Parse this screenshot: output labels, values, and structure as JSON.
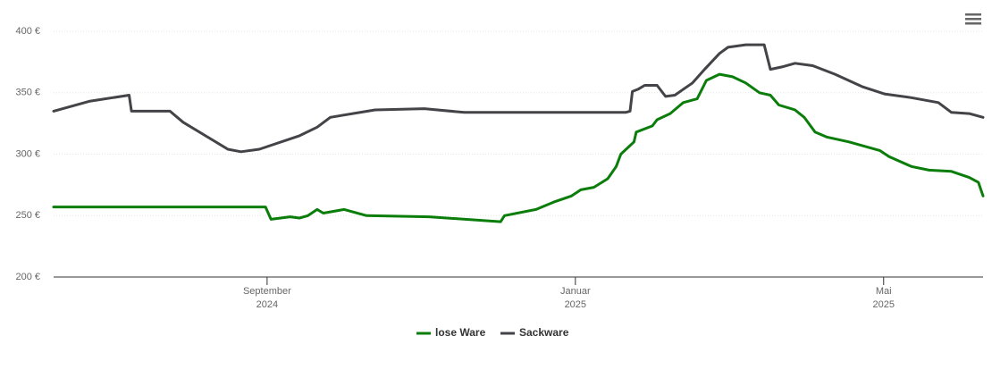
{
  "chart_data": {
    "type": "line",
    "series": [
      {
        "name": "lose Ware",
        "color": "#0a7d0a",
        "x": [
          5.23,
          7.98,
          8.05,
          8.3,
          8.42,
          8.53,
          8.65,
          8.73,
          9.0,
          9.29,
          10.1,
          11.03,
          11.08,
          11.49,
          11.72,
          11.95,
          12.07,
          12.24,
          12.42,
          12.53,
          12.59,
          12.76,
          12.79,
          13.0,
          13.06,
          13.23,
          13.4,
          13.58,
          13.7,
          13.87,
          14.04,
          14.21,
          14.39,
          14.53,
          14.64,
          14.85,
          14.97,
          15.11,
          15.26,
          15.55,
          15.95,
          16.07,
          16.36,
          16.59,
          16.88,
          17.11,
          17.23,
          17.29
        ],
        "values": [
          257,
          257,
          247,
          249,
          248,
          250,
          255,
          252,
          255,
          250,
          249,
          245,
          250,
          255,
          261,
          266,
          271,
          273,
          280,
          290,
          300,
          310,
          318,
          323,
          328,
          333,
          342,
          345,
          360,
          365,
          363,
          358,
          350,
          348,
          340,
          336,
          330,
          318,
          314,
          310,
          303,
          298,
          290,
          287,
          286,
          281,
          277,
          266
        ]
      },
      {
        "name": "Sackware",
        "color": "#434348",
        "x": [
          5.23,
          5.69,
          6.21,
          6.24,
          6.74,
          6.91,
          7.2,
          7.49,
          7.66,
          7.9,
          8.42,
          8.65,
          8.82,
          9.4,
          10.04,
          10.56,
          12.65,
          12.71,
          12.74,
          12.82,
          12.9,
          13.06,
          13.17,
          13.29,
          13.52,
          13.69,
          13.87,
          13.98,
          14.21,
          14.45,
          14.53,
          14.68,
          14.85,
          15.08,
          15.37,
          15.72,
          16.01,
          16.36,
          16.71,
          16.88,
          17.11,
          17.29
        ],
        "values": [
          335,
          343,
          348,
          335,
          335,
          326,
          315,
          304,
          302,
          304,
          315,
          322,
          330,
          336,
          337,
          334,
          334,
          335,
          351,
          353,
          356,
          356,
          347,
          348,
          358,
          370,
          382,
          387,
          389,
          389,
          369,
          371,
          374,
          372,
          365,
          355,
          349,
          346,
          342,
          334,
          333,
          330
        ]
      }
    ],
    "xlim": [
      5.23,
      17.29
    ],
    "xticks": [
      {
        "value": 8,
        "label": "September",
        "year": "2024"
      },
      {
        "value": 12,
        "label": "Januar",
        "year": "2025"
      },
      {
        "value": 16,
        "label": "Mai",
        "year": "2025"
      }
    ],
    "ylim": [
      200,
      400
    ],
    "yticks": [
      {
        "value": 200,
        "label": "200 €"
      },
      {
        "value": 250,
        "label": "250 €"
      },
      {
        "value": 300,
        "label": "300 €"
      },
      {
        "value": 350,
        "label": "350 €"
      },
      {
        "value": 400,
        "label": "400 €"
      }
    ],
    "grid": true,
    "legend": "bottom"
  }
}
